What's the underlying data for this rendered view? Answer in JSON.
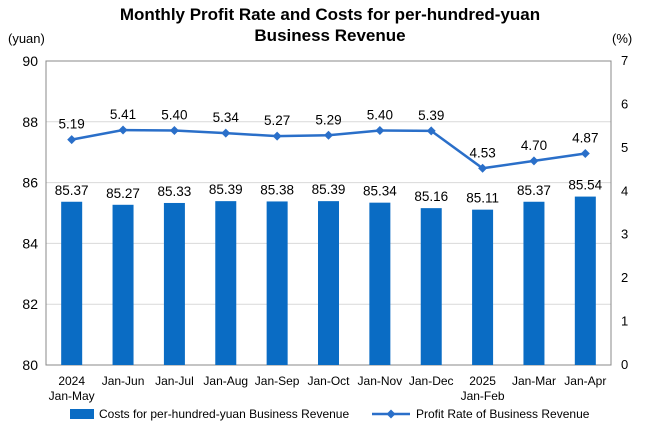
{
  "chart_data": {
    "type": "bar+line",
    "title_lines": [
      "Monthly Profit Rate and Costs for per-hundred-yuan",
      "Business Revenue"
    ],
    "left_unit": "(yuan)",
    "right_unit": "(%)",
    "categories": [
      [
        "2024",
        "Jan-May"
      ],
      [
        "Jan-Jun"
      ],
      [
        "Jan-Jul"
      ],
      [
        "Jan-Aug"
      ],
      [
        "Jan-Sep"
      ],
      [
        "Jan-Oct"
      ],
      [
        "Jan-Nov"
      ],
      [
        "Jan-Dec"
      ],
      [
        "2025",
        "Jan-Feb"
      ],
      [
        "Jan-Mar"
      ],
      [
        "Jan-Apr"
      ]
    ],
    "y_left": {
      "min": 80,
      "max": 90,
      "ticks": [
        80,
        82,
        84,
        86,
        88,
        90
      ]
    },
    "y_right": {
      "min": 0,
      "max": 7,
      "ticks": [
        0,
        1,
        2,
        3,
        4,
        5,
        6,
        7
      ]
    },
    "grid": true,
    "legend_position": "bottom",
    "series": [
      {
        "name": "Costs for per-hundred-yuan Business Revenue",
        "type": "bar",
        "axis": "left",
        "color": "#0a6cc4",
        "values": [
          85.37,
          85.27,
          85.33,
          85.39,
          85.38,
          85.39,
          85.34,
          85.16,
          85.11,
          85.37,
          85.54
        ],
        "labels": [
          "85.37",
          "85.27",
          "85.33",
          "85.39",
          "85.38",
          "85.39",
          "85.34",
          "85.16",
          "85.11",
          "85.37",
          "85.54"
        ]
      },
      {
        "name": "Profit Rate of Business Revenue",
        "type": "line",
        "axis": "right",
        "color": "#2a6fc9",
        "marker": "diamond",
        "values": [
          5.19,
          5.41,
          5.4,
          5.34,
          5.27,
          5.29,
          5.4,
          5.39,
          4.53,
          4.7,
          4.87
        ],
        "labels": [
          "5.19",
          "5.41",
          "5.40",
          "5.34",
          "5.27",
          "5.29",
          "5.40",
          "5.39",
          "4.53",
          "4.70",
          "4.87"
        ]
      }
    ]
  }
}
